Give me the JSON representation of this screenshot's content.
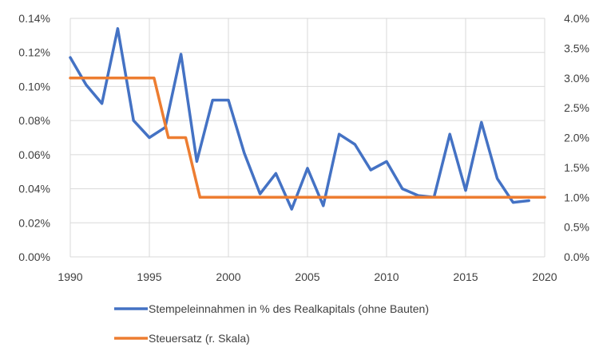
{
  "chart_data": {
    "type": "line",
    "grid": true,
    "legend_position": "bottom",
    "x": [
      1990,
      1991,
      1992,
      1993,
      1994,
      1995,
      1996,
      1997,
      1998,
      1999,
      2000,
      2001,
      2002,
      2003,
      2004,
      2005,
      2006,
      2007,
      2008,
      2009,
      2010,
      2011,
      2012,
      2013,
      2014,
      2015,
      2016,
      2017,
      2018,
      2019
    ],
    "xlim": [
      1990,
      2020
    ],
    "x_ticks": [
      "1990",
      "1995",
      "2000",
      "2005",
      "2010",
      "2015",
      "2020"
    ],
    "ylim_left": [
      0,
      0.14
    ],
    "ylim_right": [
      0,
      4.0
    ],
    "y_ticks_left": [
      "0.00%",
      "0.02%",
      "0.04%",
      "0.06%",
      "0.08%",
      "0.10%",
      "0.12%",
      "0.14%"
    ],
    "y_ticks_right": [
      "0.0%",
      "0.5%",
      "1.0%",
      "1.5%",
      "2.0%",
      "2.5%",
      "3.0%",
      "3.5%",
      "4.0%"
    ],
    "series": [
      {
        "name": "Stempeleinnahmen in % des Realkapitals (ohne Bauten)",
        "axis": "left",
        "color": "#4472c4",
        "values": [
          0.117,
          0.101,
          0.09,
          0.134,
          0.08,
          0.07,
          0.076,
          0.119,
          0.056,
          0.092,
          0.092,
          0.061,
          0.037,
          0.049,
          0.028,
          0.052,
          0.03,
          0.072,
          0.066,
          0.051,
          0.056,
          0.04,
          0.036,
          0.035,
          0.072,
          0.039,
          0.079,
          0.046,
          0.032,
          0.033
        ]
      },
      {
        "name": "Steuersatz (r. Skala)",
        "axis": "right",
        "color": "#ed7d31",
        "step_points": [
          [
            1990,
            3.0
          ],
          [
            1995.3,
            3.0
          ],
          [
            1996.2,
            2.0
          ],
          [
            1997.3,
            2.0
          ],
          [
            1998.2,
            1.0
          ],
          [
            2020,
            1.0
          ]
        ]
      }
    ]
  }
}
